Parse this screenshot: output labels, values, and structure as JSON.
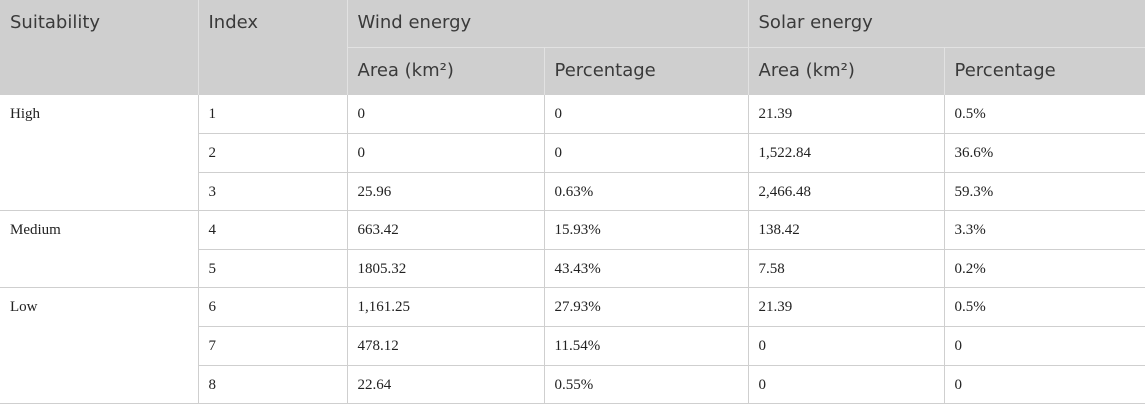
{
  "header": {
    "row1": [
      "Suitability",
      "Index",
      "Wind energy",
      "Solar energy"
    ],
    "row2": [
      "Area (km²)",
      "Percentage",
      "Area (km²)",
      "Percentage"
    ]
  },
  "groups": [
    {
      "label": "High",
      "rows": [
        [
          "1",
          "0",
          "0",
          "21.39",
          "0.5%"
        ],
        [
          "2",
          "0",
          "0",
          "1,522.84",
          "36.6%"
        ],
        [
          "3",
          "25.96",
          "0.63%",
          "2,466.48",
          "59.3%"
        ]
      ]
    },
    {
      "label": "Medium",
      "rows": [
        [
          "4",
          "663.42",
          "15.93%",
          "138.42",
          "3.3%"
        ],
        [
          "5",
          "1805.32",
          "43.43%",
          "7.58",
          "0.2%"
        ]
      ]
    },
    {
      "label": "Low",
      "rows": [
        [
          "6",
          "1,161.25",
          "27.93%",
          "21.39",
          "0.5%"
        ],
        [
          "7",
          "478.12",
          "11.54%",
          "0",
          "0"
        ],
        [
          "8",
          "22.64",
          "0.55%",
          "0",
          "0"
        ]
      ]
    }
  ]
}
